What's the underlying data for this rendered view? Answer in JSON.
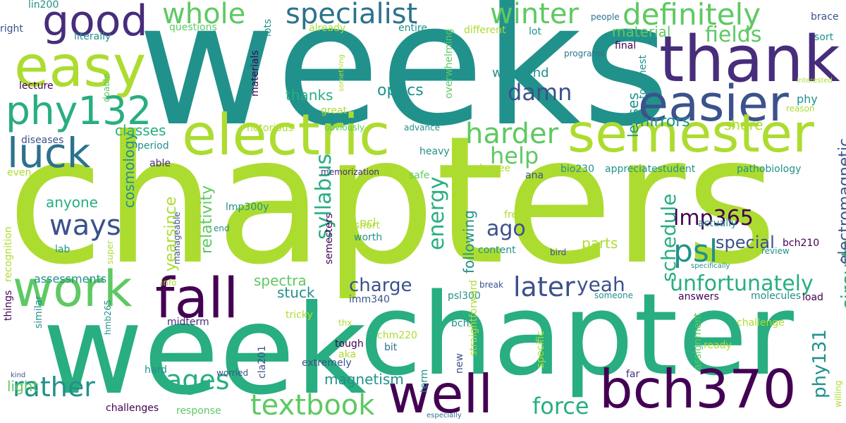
{
  "palette": {
    "yellowgreen": "#addc30",
    "green": "#5ec962",
    "teal": "#21918c",
    "bluegreen": "#28ae80",
    "blue": "#3b528b",
    "darkblue": "#2c728e",
    "purple": "#472d7b",
    "darkpurple": "#440154"
  },
  "words": [
    "weeks",
    "chapters",
    "chapter",
    "week",
    "thank",
    "easier",
    "semester",
    "electric",
    "easy",
    "phy132",
    "good",
    "work",
    "fall",
    "luck",
    "well",
    "bch370",
    "specialist",
    "definitely",
    "winter",
    "whole",
    "textbook",
    "harder",
    "later",
    "unfortunately",
    "circuits",
    "syllabus",
    "energy",
    "schedule",
    "psl",
    "lmp365",
    "ways",
    "rather",
    "ages",
    "charge",
    "yeah",
    "ago",
    "force",
    "help",
    "damn",
    "fields",
    "material",
    "thanks",
    "optics",
    "magnetism",
    "special",
    "electromagnetic",
    "phy131",
    "cosmology",
    "relativity",
    "mirrors",
    "spectra",
    "share",
    "weekend",
    "lenses",
    "classes",
    "light",
    "yearsince",
    "anyone",
    "stuck",
    "parts",
    "assessments",
    "following",
    "appreciatestudent",
    "pathobiology",
    "lin200",
    "right",
    "literally",
    "questions",
    "already",
    "entire",
    "different",
    "lot",
    "final",
    "programs",
    "toughest",
    "people",
    "brace",
    "sort",
    "lots",
    "materials",
    "lecture",
    "doable",
    "diseases",
    "period",
    "notorious",
    "obviously",
    "advance",
    "overwhelming",
    "something",
    "great",
    "interested",
    "phy",
    "reason",
    "even",
    "able",
    "memorization",
    "safe",
    "degree",
    "heavy",
    "ana",
    "bio230",
    "recognition",
    "lmp300y",
    "end",
    "pcl",
    "free",
    "actually",
    "bch210",
    "lab",
    "super",
    "manageable",
    "semesters",
    "short",
    "worth",
    "content",
    "bird",
    "review",
    "specifically",
    "info",
    "break",
    "psl300",
    "imm340",
    "someone",
    "answers",
    "molecules",
    "load",
    "hmb265",
    "midterm",
    "similar",
    "tricky",
    "thx",
    "straightforward",
    "challenge",
    "ready",
    "things",
    "bch",
    "chm220",
    "tough",
    "bit",
    "term",
    "assignment",
    "kind",
    "extremely",
    "aka",
    "new",
    "far",
    "hard",
    "worried",
    "cla201",
    "specific",
    "willing",
    "challenges",
    "response",
    "especially",
    "difficult",
    "super2"
  ]
}
